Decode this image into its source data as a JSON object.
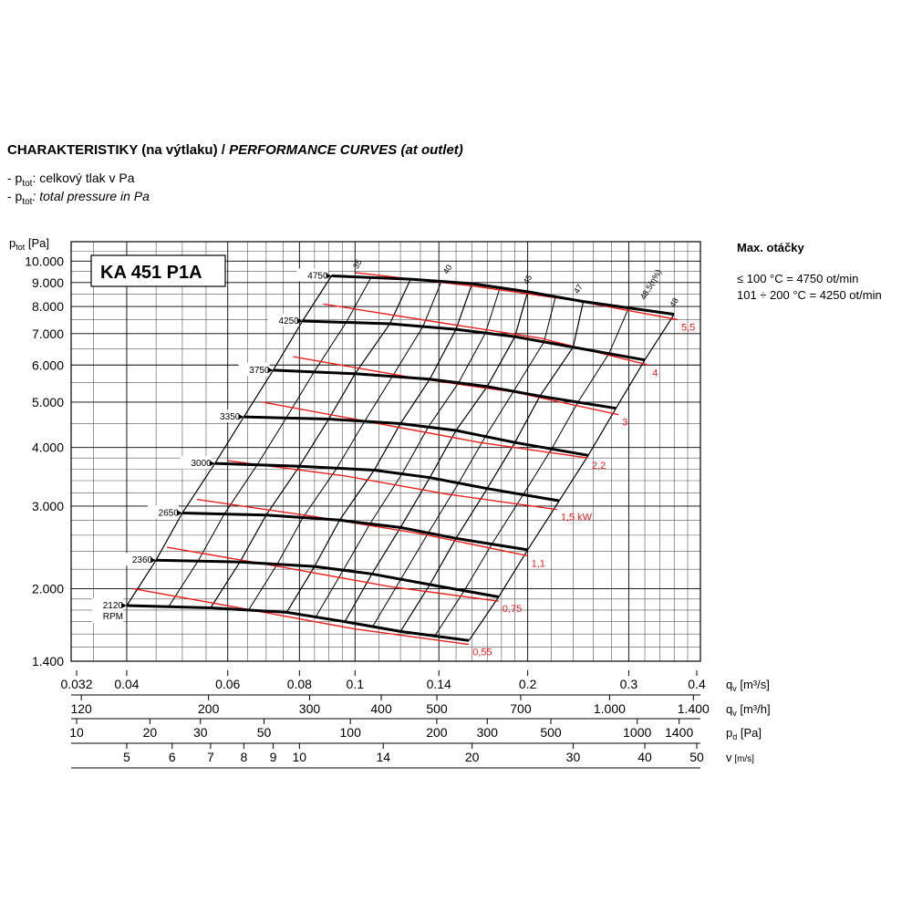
{
  "header": {
    "title_cz": "CHARAKTERISTIKY (na výtlaku) /",
    "title_en": "PERFORMANCE CURVES (at outlet)",
    "legend_cz_prefix": "- p",
    "legend_cz_sub": "tot",
    "legend_cz_text": ": celkový tlak v Pa",
    "legend_en_prefix": "- p",
    "legend_en_sub": "tot",
    "legend_en_text": ": total pressure in Pa"
  },
  "max_speed": {
    "title": "Max. otáčky",
    "line1": "≤ 100 °C = 4750 ot/min",
    "line2": "101 ÷ 200 °C = 4250 ot/min"
  },
  "chart_data": {
    "type": "line",
    "model": "KA 451 P1A",
    "ylabel_main": "p",
    "ylabel_sub": "tot",
    "ylabel_unit": "[Pa]",
    "y_scale": "log",
    "x_scale": "log",
    "ylim": [
      1400,
      11000
    ],
    "xlim": [
      0.032,
      0.4
    ],
    "y_ticks": [
      {
        "v": 10000,
        "label": "10.000"
      },
      {
        "v": 9000,
        "label": "9.000"
      },
      {
        "v": 8000,
        "label": "8.000"
      },
      {
        "v": 7000,
        "label": "7.000"
      },
      {
        "v": 6000,
        "label": "6.000"
      },
      {
        "v": 5000,
        "label": "5.000"
      },
      {
        "v": 4000,
        "label": "4.000"
      },
      {
        "v": 3000,
        "label": "3.000"
      },
      {
        "v": 2000,
        "label": "2.000"
      },
      {
        "v": 1400,
        "label": "1.400"
      }
    ],
    "axes": [
      {
        "name": "q",
        "sub": "v",
        "unit": "[m³/s]",
        "ticks": [
          {
            "v": 0.032,
            "label": "0.032"
          },
          {
            "v": 0.04,
            "label": "0.04"
          },
          {
            "v": 0.06,
            "label": "0.06"
          },
          {
            "v": 0.08,
            "label": "0.08"
          },
          {
            "v": 0.1,
            "label": "0.1"
          },
          {
            "v": 0.14,
            "label": "0.14"
          },
          {
            "v": 0.2,
            "label": "0.2"
          },
          {
            "v": 0.3,
            "label": "0.3"
          },
          {
            "v": 0.4,
            "label": "0.4"
          }
        ]
      },
      {
        "name": "q",
        "sub": "v",
        "unit": "[m³/h]",
        "ticks": [
          {
            "v": 120,
            "label": "120"
          },
          {
            "v": 200,
            "label": "200"
          },
          {
            "v": 300,
            "label": "300"
          },
          {
            "v": 400,
            "label": "400"
          },
          {
            "v": 500,
            "label": "500"
          },
          {
            "v": 700,
            "label": "700"
          },
          {
            "v": 1000,
            "label": "1.000"
          },
          {
            "v": 1400,
            "label": "1.400"
          }
        ]
      },
      {
        "name": "p",
        "sub": "d",
        "unit": "[Pa]",
        "ticks": [
          {
            "v": 10,
            "label": "10"
          },
          {
            "v": 20,
            "label": "20"
          },
          {
            "v": 30,
            "label": "30"
          },
          {
            "v": 50,
            "label": "50"
          },
          {
            "v": 100,
            "label": "100"
          },
          {
            "v": 200,
            "label": "200"
          },
          {
            "v": 300,
            "label": "300"
          },
          {
            "v": 500,
            "label": "500"
          },
          {
            "v": 1000,
            "label": "1000"
          },
          {
            "v": 1400,
            "label": "1400"
          }
        ]
      },
      {
        "name": "v",
        "sub": "",
        "unit": "[m/s]",
        "ticks": [
          {
            "v": 5,
            "label": "5"
          },
          {
            "v": 6,
            "label": "6"
          },
          {
            "v": 7,
            "label": "7"
          },
          {
            "v": 8,
            "label": "8"
          },
          {
            "v": 9,
            "label": "9"
          },
          {
            "v": 10,
            "label": "10"
          },
          {
            "v": 14,
            "label": "14"
          },
          {
            "v": 20,
            "label": "20"
          },
          {
            "v": 30,
            "label": "30"
          },
          {
            "v": 40,
            "label": "40"
          },
          {
            "v": 50,
            "label": "50"
          }
        ]
      }
    ],
    "rpm_series": [
      {
        "name": "4750",
        "points": [
          [
            0.091,
            9300
          ],
          [
            0.125,
            9150
          ],
          [
            0.16,
            8950
          ],
          [
            0.2,
            8600
          ],
          [
            0.25,
            8200
          ],
          [
            0.36,
            7700
          ]
        ]
      },
      {
        "name": "4250",
        "points": [
          [
            0.081,
            7450
          ],
          [
            0.115,
            7350
          ],
          [
            0.15,
            7150
          ],
          [
            0.19,
            6900
          ],
          [
            0.24,
            6550
          ],
          [
            0.32,
            6150
          ]
        ]
      },
      {
        "name": "3750",
        "points": [
          [
            0.072,
            5850
          ],
          [
            0.1,
            5750
          ],
          [
            0.135,
            5600
          ],
          [
            0.17,
            5400
          ],
          [
            0.21,
            5150
          ],
          [
            0.285,
            4850
          ]
        ]
      },
      {
        "name": "3350",
        "points": [
          [
            0.064,
            4650
          ],
          [
            0.09,
            4600
          ],
          [
            0.12,
            4500
          ],
          [
            0.15,
            4350
          ],
          [
            0.19,
            4100
          ],
          [
            0.255,
            3850
          ]
        ]
      },
      {
        "name": "3000",
        "points": [
          [
            0.057,
            3700
          ],
          [
            0.08,
            3650
          ],
          [
            0.108,
            3580
          ],
          [
            0.135,
            3450
          ],
          [
            0.17,
            3270
          ],
          [
            0.227,
            3080
          ]
        ]
      },
      {
        "name": "2650",
        "points": [
          [
            0.05,
            2900
          ],
          [
            0.07,
            2870
          ],
          [
            0.094,
            2800
          ],
          [
            0.12,
            2700
          ],
          [
            0.15,
            2560
          ],
          [
            0.2,
            2420
          ]
        ]
      },
      {
        "name": "2360",
        "points": [
          [
            0.045,
            2300
          ],
          [
            0.063,
            2280
          ],
          [
            0.085,
            2230
          ],
          [
            0.107,
            2150
          ],
          [
            0.135,
            2040
          ],
          [
            0.178,
            1920
          ]
        ]
      },
      {
        "name": "2120",
        "label_line2": "RPM",
        "points": [
          [
            0.04,
            1840
          ],
          [
            0.056,
            1820
          ],
          [
            0.076,
            1780
          ],
          [
            0.096,
            1700
          ],
          [
            0.12,
            1620
          ],
          [
            0.158,
            1550
          ]
        ]
      }
    ],
    "power_series": [
      {
        "name": "5,5",
        "points": [
          [
            0.1,
            9450
          ],
          [
            0.16,
            8850
          ],
          [
            0.24,
            8250
          ],
          [
            0.365,
            7500
          ]
        ]
      },
      {
        "name": "4",
        "points": [
          [
            0.088,
            8100
          ],
          [
            0.14,
            7400
          ],
          [
            0.21,
            6850
          ],
          [
            0.325,
            6000
          ]
        ]
      },
      {
        "name": "3",
        "points": [
          [
            0.078,
            6250
          ],
          [
            0.125,
            5650
          ],
          [
            0.19,
            5250
          ],
          [
            0.288,
            4700
          ]
        ]
      },
      {
        "name": "2,2",
        "points": [
          [
            0.069,
            5000
          ],
          [
            0.11,
            4500
          ],
          [
            0.165,
            4100
          ],
          [
            0.255,
            3800
          ]
        ]
      },
      {
        "name": "1,5 kW",
        "points": [
          [
            0.06,
            3750
          ],
          [
            0.096,
            3480
          ],
          [
            0.145,
            3180
          ],
          [
            0.225,
            2950
          ]
        ]
      },
      {
        "name": "1,1",
        "points": [
          [
            0.053,
            3100
          ],
          [
            0.085,
            2850
          ],
          [
            0.13,
            2620
          ],
          [
            0.2,
            2350
          ]
        ]
      },
      {
        "name": "0,75",
        "points": [
          [
            0.047,
            2450
          ],
          [
            0.075,
            2220
          ],
          [
            0.115,
            2020
          ],
          [
            0.178,
            1880
          ]
        ]
      },
      {
        "name": "0,55",
        "points": [
          [
            0.041,
            2000
          ],
          [
            0.066,
            1800
          ],
          [
            0.1,
            1640
          ],
          [
            0.158,
            1520
          ]
        ]
      }
    ],
    "efficiency_labels": [
      "35",
      "40",
      "45",
      "47",
      "48,5(η%)",
      "48"
    ]
  }
}
